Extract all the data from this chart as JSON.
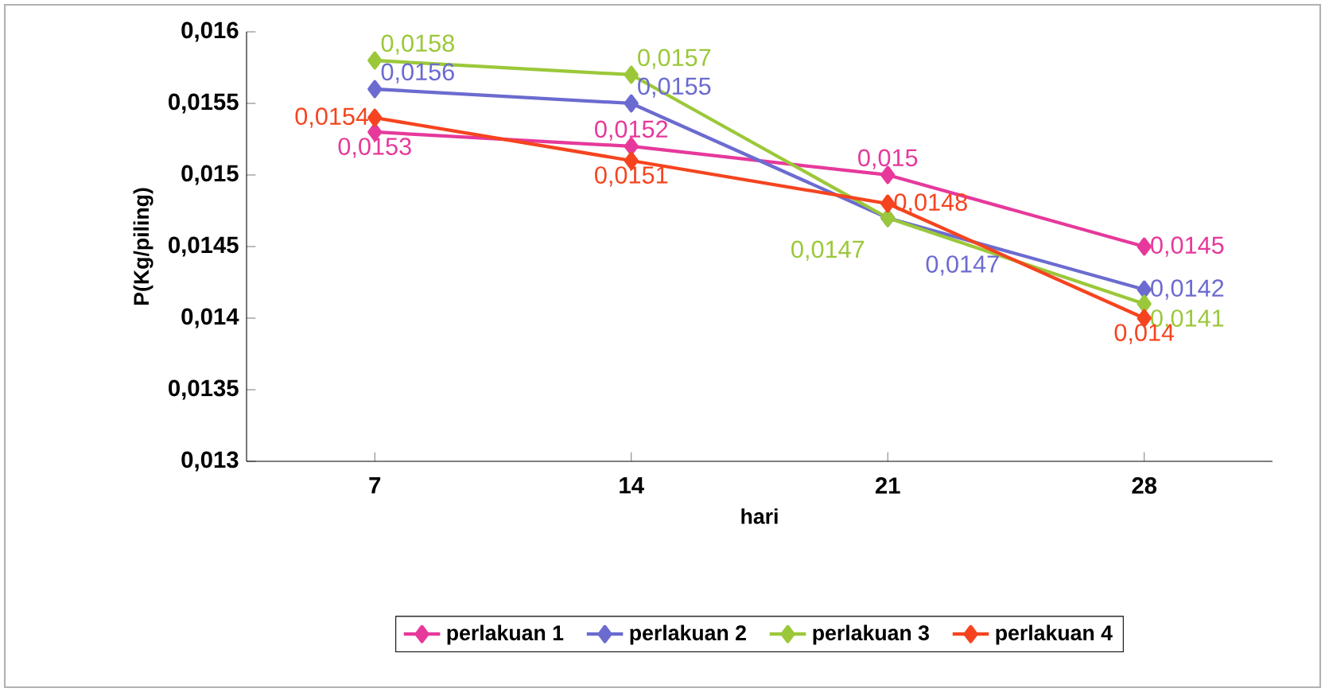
{
  "chart_data": {
    "type": "line",
    "xlabel": "hari",
    "ylabel": "P(Kg/piling)",
    "categories": [
      "7",
      "14",
      "21",
      "28"
    ],
    "series": [
      {
        "name": "perlakuan 1",
        "color": "#e6399b",
        "values": [
          0.0153,
          0.0152,
          0.015,
          0.0145
        ],
        "value_labels": [
          "0,0153",
          "0,0152",
          "0,015",
          "0,0145"
        ]
      },
      {
        "name": "perlakuan 2",
        "color": "#6b6bd0",
        "values": [
          0.0156,
          0.0155,
          0.0147,
          0.0142
        ],
        "value_labels": [
          "0,0156",
          "0,0155",
          "0,0147",
          "0,0142"
        ]
      },
      {
        "name": "perlakuan 3",
        "color": "#9bc83a",
        "values": [
          0.0158,
          0.0157,
          0.0147,
          0.0141
        ],
        "value_labels": [
          "0,0158",
          "0,0157",
          "0,0147",
          "0,0141"
        ]
      },
      {
        "name": "perlakuan 4",
        "color": "#f5441f",
        "values": [
          0.0154,
          0.0151,
          0.0148,
          0.014
        ],
        "value_labels": [
          "0,0154",
          "0,0151",
          "0,0148",
          "0,014"
        ]
      }
    ],
    "ylim": [
      0.013,
      0.016
    ],
    "yticks": [
      {
        "value": 0.013,
        "label": "0,013"
      },
      {
        "value": 0.0135,
        "label": "0,0135"
      },
      {
        "value": 0.014,
        "label": "0,014"
      },
      {
        "value": 0.0145,
        "label": "0,0145"
      },
      {
        "value": 0.015,
        "label": "0,015"
      },
      {
        "value": 0.0155,
        "label": "0,0155"
      },
      {
        "value": 0.016,
        "label": "0,016"
      }
    ],
    "grid": false,
    "legend": "bottom",
    "marker": "diamond",
    "line_style": "solid"
  }
}
